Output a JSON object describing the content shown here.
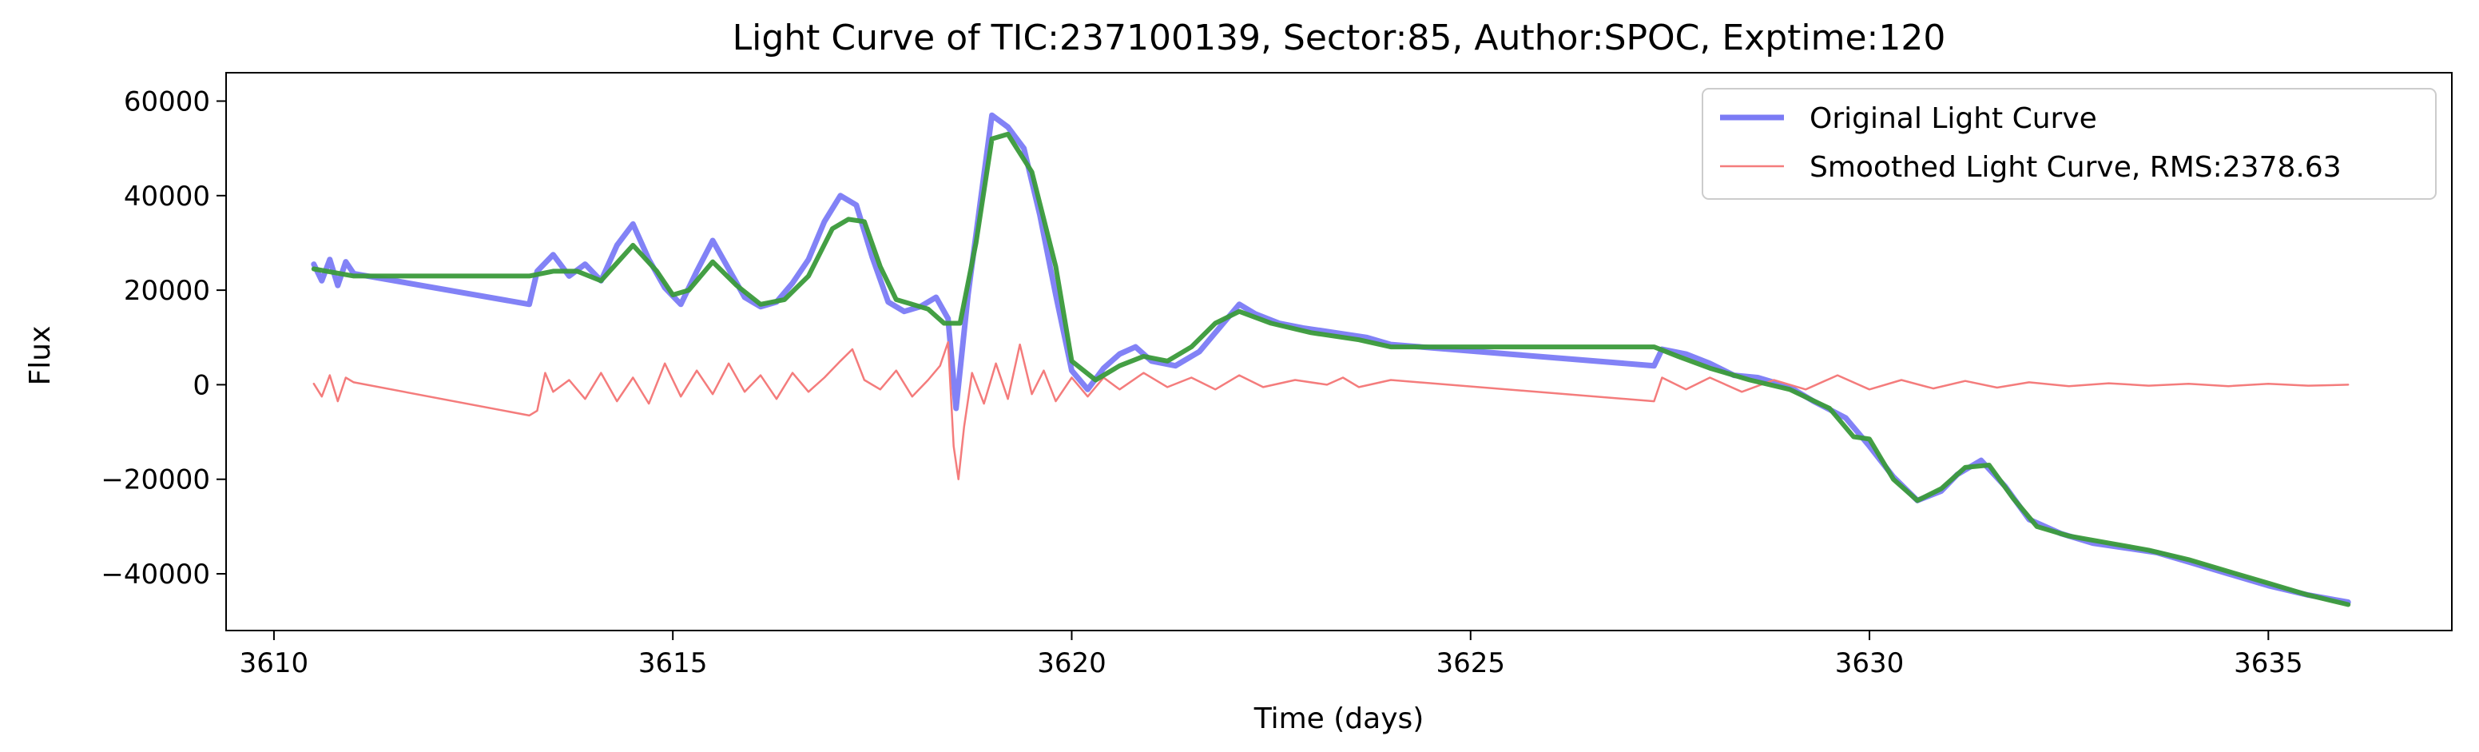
{
  "chart_data": {
    "type": "line",
    "title": "Light Curve of TIC:237100139, Sector:85, Author:SPOC, Exptime:120",
    "xlabel": "Time (days)",
    "ylabel": "Flux",
    "xlim": [
      3609.4,
      3637.3
    ],
    "ylim": [
      -52000,
      66000
    ],
    "xticks": [
      3610,
      3615,
      3620,
      3625,
      3630,
      3635
    ],
    "yticks": [
      -40000,
      -20000,
      0,
      20000,
      40000,
      60000
    ],
    "xtick_labels": [
      "3610",
      "3615",
      "3620",
      "3625",
      "3630",
      "3635"
    ],
    "ytick_labels": [
      "−40000",
      "−20000",
      "0",
      "20000",
      "40000",
      "60000"
    ],
    "grid": false,
    "legend_position": "top-right",
    "series": [
      {
        "name": "Original Light Curve",
        "color": "#7b7bf5",
        "points": [
          [
            3610.5,
            25500
          ],
          [
            3610.6,
            22000
          ],
          [
            3610.7,
            26500
          ],
          [
            3610.8,
            21000
          ],
          [
            3610.9,
            26000
          ],
          [
            3611.0,
            23500
          ],
          [
            3613.2,
            17000
          ],
          [
            3613.3,
            24000
          ],
          [
            3613.5,
            27500
          ],
          [
            3613.7,
            23000
          ],
          [
            3613.9,
            25500
          ],
          [
            3614.1,
            22000
          ],
          [
            3614.3,
            29500
          ],
          [
            3614.5,
            34000
          ],
          [
            3614.7,
            26500
          ],
          [
            3614.9,
            20500
          ],
          [
            3615.1,
            17000
          ],
          [
            3615.3,
            24000
          ],
          [
            3615.5,
            30500
          ],
          [
            3615.7,
            24500
          ],
          [
            3615.9,
            18500
          ],
          [
            3616.1,
            16500
          ],
          [
            3616.3,
            17500
          ],
          [
            3616.5,
            21500
          ],
          [
            3616.7,
            26500
          ],
          [
            3616.9,
            34500
          ],
          [
            3617.1,
            40000
          ],
          [
            3617.3,
            38000
          ],
          [
            3617.5,
            27000
          ],
          [
            3617.7,
            17500
          ],
          [
            3617.9,
            15500
          ],
          [
            3618.1,
            16500
          ],
          [
            3618.3,
            18500
          ],
          [
            3618.45,
            14000
          ],
          [
            3618.55,
            -5000
          ],
          [
            3618.7,
            19000
          ],
          [
            3618.85,
            38000
          ],
          [
            3619.0,
            57000
          ],
          [
            3619.2,
            54500
          ],
          [
            3619.4,
            50000
          ],
          [
            3619.6,
            36000
          ],
          [
            3619.8,
            19000
          ],
          [
            3620.0,
            3000
          ],
          [
            3620.2,
            -1000
          ],
          [
            3620.4,
            3500
          ],
          [
            3620.6,
            6500
          ],
          [
            3620.8,
            8000
          ],
          [
            3621.0,
            5000
          ],
          [
            3621.3,
            4000
          ],
          [
            3621.6,
            7000
          ],
          [
            3621.9,
            13000
          ],
          [
            3622.1,
            17000
          ],
          [
            3622.3,
            15000
          ],
          [
            3622.6,
            13000
          ],
          [
            3622.9,
            12000
          ],
          [
            3623.3,
            11000
          ],
          [
            3623.7,
            10000
          ],
          [
            3624.0,
            8500
          ],
          [
            3627.3,
            4000
          ],
          [
            3627.4,
            7500
          ],
          [
            3627.7,
            6500
          ],
          [
            3628.0,
            4500
          ],
          [
            3628.3,
            2000
          ],
          [
            3628.6,
            1500
          ],
          [
            3629.0,
            -500
          ],
          [
            3629.3,
            -3500
          ],
          [
            3629.7,
            -7000
          ],
          [
            3630.0,
            -13000
          ],
          [
            3630.3,
            -19500
          ],
          [
            3630.6,
            -24500
          ],
          [
            3630.9,
            -22500
          ],
          [
            3631.1,
            -19000
          ],
          [
            3631.4,
            -16000
          ],
          [
            3631.7,
            -21500
          ],
          [
            3632.0,
            -28500
          ],
          [
            3632.4,
            -31500
          ],
          [
            3632.8,
            -33500
          ],
          [
            3633.2,
            -34500
          ],
          [
            3633.6,
            -35500
          ],
          [
            3634.0,
            -37500
          ],
          [
            3634.5,
            -40000
          ],
          [
            3635.0,
            -42500
          ],
          [
            3635.5,
            -44500
          ],
          [
            3636.0,
            -46000
          ]
        ]
      },
      {
        "name": "Smoothed Light Curve, RMS:2378.63",
        "color": "#f47c7c",
        "points": [
          [
            3610.5,
            200
          ],
          [
            3610.6,
            -2500
          ],
          [
            3610.7,
            2000
          ],
          [
            3610.8,
            -3500
          ],
          [
            3610.9,
            1500
          ],
          [
            3611.0,
            500
          ],
          [
            3613.2,
            -6500
          ],
          [
            3613.3,
            -5500
          ],
          [
            3613.4,
            2500
          ],
          [
            3613.5,
            -1500
          ],
          [
            3613.7,
            1000
          ],
          [
            3613.9,
            -3000
          ],
          [
            3614.1,
            2500
          ],
          [
            3614.3,
            -3500
          ],
          [
            3614.5,
            1500
          ],
          [
            3614.7,
            -4000
          ],
          [
            3614.9,
            4500
          ],
          [
            3615.1,
            -2500
          ],
          [
            3615.3,
            3000
          ],
          [
            3615.5,
            -2000
          ],
          [
            3615.7,
            4500
          ],
          [
            3615.9,
            -1500
          ],
          [
            3616.1,
            2000
          ],
          [
            3616.3,
            -3000
          ],
          [
            3616.5,
            2500
          ],
          [
            3616.7,
            -1500
          ],
          [
            3616.9,
            1500
          ],
          [
            3617.1,
            5000
          ],
          [
            3617.25,
            7500
          ],
          [
            3617.4,
            1000
          ],
          [
            3617.6,
            -1000
          ],
          [
            3617.8,
            3000
          ],
          [
            3618.0,
            -2500
          ],
          [
            3618.2,
            1000
          ],
          [
            3618.35,
            4000
          ],
          [
            3618.45,
            9000
          ],
          [
            3618.52,
            -13000
          ],
          [
            3618.58,
            -20000
          ],
          [
            3618.65,
            -9000
          ],
          [
            3618.75,
            2500
          ],
          [
            3618.9,
            -4000
          ],
          [
            3619.05,
            4500
          ],
          [
            3619.2,
            -3000
          ],
          [
            3619.35,
            8500
          ],
          [
            3619.5,
            -2000
          ],
          [
            3619.65,
            3000
          ],
          [
            3619.8,
            -3500
          ],
          [
            3620.0,
            1500
          ],
          [
            3620.2,
            -2500
          ],
          [
            3620.4,
            1500
          ],
          [
            3620.6,
            -1000
          ],
          [
            3620.9,
            2500
          ],
          [
            3621.2,
            -500
          ],
          [
            3621.5,
            1500
          ],
          [
            3621.8,
            -1000
          ],
          [
            3622.1,
            2000
          ],
          [
            3622.4,
            -500
          ],
          [
            3622.8,
            1000
          ],
          [
            3623.2,
            0
          ],
          [
            3623.4,
            1500
          ],
          [
            3623.6,
            -500
          ],
          [
            3624.0,
            1000
          ],
          [
            3627.3,
            -3500
          ],
          [
            3627.4,
            1500
          ],
          [
            3627.7,
            -1000
          ],
          [
            3628.0,
            1500
          ],
          [
            3628.4,
            -1500
          ],
          [
            3628.8,
            1000
          ],
          [
            3629.2,
            -1000
          ],
          [
            3629.6,
            2000
          ],
          [
            3630.0,
            -1000
          ],
          [
            3630.4,
            1000
          ],
          [
            3630.8,
            -800
          ],
          [
            3631.2,
            800
          ],
          [
            3631.6,
            -600
          ],
          [
            3632.0,
            500
          ],
          [
            3632.5,
            -300
          ],
          [
            3633.0,
            300
          ],
          [
            3633.5,
            -200
          ],
          [
            3634.0,
            200
          ],
          [
            3634.5,
            -300
          ],
          [
            3635.0,
            200
          ],
          [
            3635.5,
            -200
          ],
          [
            3636.0,
            0
          ]
        ]
      },
      {
        "name": "",
        "color": "#3a9a3a",
        "points": [
          [
            3610.5,
            24500
          ],
          [
            3611.0,
            23000
          ],
          [
            3613.2,
            23000
          ],
          [
            3613.5,
            24000
          ],
          [
            3613.8,
            24000
          ],
          [
            3614.1,
            22000
          ],
          [
            3614.5,
            29500
          ],
          [
            3614.8,
            24000
          ],
          [
            3615.0,
            19000
          ],
          [
            3615.2,
            20000
          ],
          [
            3615.5,
            26000
          ],
          [
            3615.8,
            21000
          ],
          [
            3616.1,
            17000
          ],
          [
            3616.4,
            18000
          ],
          [
            3616.7,
            23000
          ],
          [
            3617.0,
            33000
          ],
          [
            3617.2,
            35000
          ],
          [
            3617.4,
            34500
          ],
          [
            3617.6,
            25000
          ],
          [
            3617.8,
            18000
          ],
          [
            3618.0,
            17000
          ],
          [
            3618.2,
            16000
          ],
          [
            3618.4,
            13000
          ],
          [
            3618.6,
            13000
          ],
          [
            3618.8,
            30000
          ],
          [
            3619.0,
            52000
          ],
          [
            3619.2,
            53000
          ],
          [
            3619.5,
            45000
          ],
          [
            3619.8,
            25000
          ],
          [
            3620.0,
            5000
          ],
          [
            3620.3,
            1000
          ],
          [
            3620.6,
            4000
          ],
          [
            3620.9,
            6000
          ],
          [
            3621.2,
            5000
          ],
          [
            3621.5,
            8000
          ],
          [
            3621.8,
            13000
          ],
          [
            3622.1,
            15500
          ],
          [
            3622.5,
            13000
          ],
          [
            3623.0,
            11000
          ],
          [
            3623.6,
            9500
          ],
          [
            3624.0,
            8000
          ],
          [
            3627.3,
            8000
          ],
          [
            3627.6,
            6000
          ],
          [
            3628.0,
            3500
          ],
          [
            3628.5,
            1000
          ],
          [
            3629.0,
            -1000
          ],
          [
            3629.5,
            -5000
          ],
          [
            3629.8,
            -11000
          ],
          [
            3630.0,
            -11500
          ],
          [
            3630.3,
            -20000
          ],
          [
            3630.6,
            -24500
          ],
          [
            3630.9,
            -22000
          ],
          [
            3631.2,
            -17500
          ],
          [
            3631.5,
            -17000
          ],
          [
            3631.8,
            -24000
          ],
          [
            3632.1,
            -30000
          ],
          [
            3632.5,
            -32000
          ],
          [
            3633.0,
            -33500
          ],
          [
            3633.5,
            -35000
          ],
          [
            3634.0,
            -37000
          ],
          [
            3634.5,
            -39500
          ],
          [
            3635.0,
            -42000
          ],
          [
            3635.5,
            -44500
          ],
          [
            3636.0,
            -46500
          ]
        ]
      }
    ]
  }
}
